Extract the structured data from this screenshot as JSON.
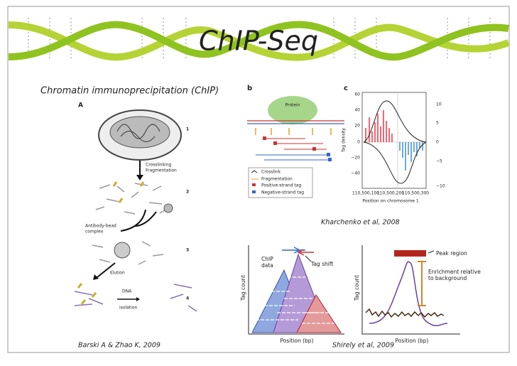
{
  "slide": {
    "title": "ChIP-Seq",
    "subtitle": "Chromatin immunoprecipitation (ChIP)"
  },
  "figure_left": {
    "panel": "A",
    "steps": [
      "1",
      "2",
      "3",
      "4"
    ],
    "crosslinking": "Crosslinking",
    "fragmentation": "Fragmentation",
    "antibody_bead": "Antibody-bead",
    "complex": "complex",
    "elution": "Elution",
    "dna": "DNA",
    "isolation": "isolation",
    "citation": "Barski A & Zhao K, 2009"
  },
  "figure_top": {
    "panel_b": "b",
    "panel_c": "c",
    "protein": "Protein",
    "legend": [
      "Crosslink",
      "Fragmentation",
      "Positive-strand tag",
      "Negative-strand tag"
    ],
    "y_label": "Tag density",
    "left_ticks": [
      "60",
      "40",
      "20",
      "0",
      "−20",
      "−40"
    ],
    "right_ticks": [
      "10",
      "5",
      "0",
      "−5",
      "−10"
    ],
    "x_ticks": [
      "110,500,100",
      "110,500,200",
      "110,500,300"
    ],
    "x_label": "Position on chromosome 1",
    "citation": "Kharchenko et al, 2008"
  },
  "figure_bottom": {
    "chip": "ChIP",
    "data": "data",
    "tag_shift": "Tag shift",
    "y_label_left": "Tag count",
    "x_label_left": "Position (bp)",
    "peak_region": "Peak region",
    "enrichment": [
      "Enrichment relative",
      "to background"
    ],
    "y_label_right": "Tag count",
    "x_label_right": "Position (bp)",
    "citation": "Shirely et al, 2009"
  }
}
